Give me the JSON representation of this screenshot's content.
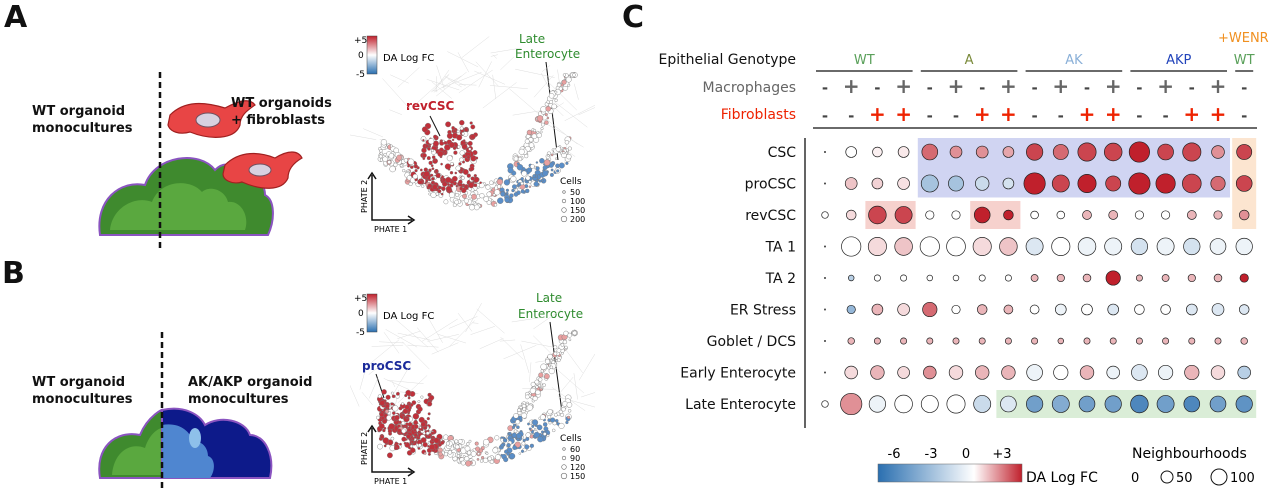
{
  "panels": {
    "a": {
      "letter": "A",
      "left_label_1": "WT organoid",
      "left_label_2": "monocultures",
      "right_label_1": "WT organoids",
      "right_label_2": "+ fibroblasts",
      "colorbar_top": "+5",
      "colorbar_mid": "0",
      "colorbar_bot": "-5",
      "colorbar_title": "DA Log FC",
      "annotation_late_1": "Late",
      "annotation_late_2": "Enterocyte",
      "annotation_highlight": "revCSC",
      "axis_y": "PHATE 2",
      "axis_x": "PHATE 1",
      "cells_title": "Cells",
      "cells_sizes": [
        "50",
        "100",
        "150",
        "200"
      ]
    },
    "b": {
      "letter": "B",
      "left_label_1": "WT organoid",
      "left_label_2": "monocultures",
      "right_label_1": "AK/AKP organoid",
      "right_label_2": "monocultures",
      "colorbar_top": "+5",
      "colorbar_mid": "0",
      "colorbar_bot": "-5",
      "colorbar_title": "DA Log FC",
      "annotation_late_1": "Late",
      "annotation_late_2": "Enterocyte",
      "annotation_highlight": "proCSC",
      "axis_y": "PHATE 2",
      "axis_x": "PHATE 1",
      "cells_title": "Cells",
      "cells_sizes": [
        "60",
        "90",
        "120",
        "150"
      ]
    },
    "c": {
      "letter": "C",
      "wenr_label": "+WENR",
      "row_header_genotype": "Epithelial Genotype",
      "row_header_macrophages": "Macrophages",
      "row_header_fibroblasts": "Fibroblasts",
      "genotype_groups": [
        {
          "label": "WT",
          "color": "#5aa05a"
        },
        {
          "label": "A",
          "color": "#7a8a3a"
        },
        {
          "label": "AK",
          "color": "#8ab0d8"
        },
        {
          "label": "AKP",
          "color": "#2244bb"
        },
        {
          "label": "WT",
          "color": "#5aa05a"
        }
      ],
      "macrophages": [
        "-",
        "+",
        "-",
        "+",
        "-",
        "+",
        "-",
        "+",
        "-",
        "+",
        "-",
        "+",
        "-",
        "+",
        "-",
        "+",
        "-"
      ],
      "fibroblasts": [
        "-",
        "-",
        "+",
        "+",
        "-",
        "-",
        "+",
        "+",
        "-",
        "-",
        "+",
        "+",
        "-",
        "-",
        "+",
        "+",
        "-"
      ],
      "cell_types": [
        "CSC",
        "proCSC",
        "revCSC",
        "TA 1",
        "TA 2",
        "ER Stress",
        "Goblet / DCS",
        "Early Enterocyte",
        "Late Enterocyte"
      ],
      "colorbar_ticks": [
        "-6",
        "-3",
        "0",
        "+3"
      ],
      "colorbar_title": "DA Log FC",
      "neigh_title": "Neighbourhoods",
      "neigh_sizes": [
        "0",
        "50",
        "100"
      ],
      "colors": {
        "positive": "#cc3333",
        "negative": "#2a6fb0",
        "fibroblast_sign": "#ee2200",
        "macrophage_sign": "#666666"
      }
    }
  },
  "chart_data": {
    "type": "bubble",
    "columns": [
      "WT",
      "WT +M",
      "WT +F",
      "WT +M+F",
      "A",
      "A +M",
      "A +F",
      "A +M+F",
      "AK",
      "AK +M",
      "AK +F",
      "AK +M+F",
      "AKP",
      "AKP +M",
      "AKP +F",
      "AKP +M+F",
      "WT +WENR"
    ],
    "rows": [
      "CSC",
      "proCSC",
      "revCSC",
      "TA 1",
      "TA 2",
      "ER Stress",
      "Goblet / DCS",
      "Early Enterocyte",
      "Late Enterocyte"
    ],
    "neighbourhoods": [
      [
        0,
        20,
        15,
        20,
        50,
        25,
        25,
        20,
        55,
        45,
        70,
        65,
        90,
        50,
        70,
        30,
        45
      ],
      [
        0,
        25,
        20,
        25,
        60,
        45,
        35,
        20,
        100,
        60,
        70,
        45,
        100,
        80,
        75,
        40,
        50
      ],
      [
        5,
        15,
        65,
        60,
        10,
        10,
        50,
        15,
        8,
        8,
        12,
        12,
        10,
        10,
        12,
        10,
        15
      ],
      [
        0,
        80,
        70,
        65,
        80,
        75,
        70,
        65,
        60,
        70,
        65,
        60,
        55,
        60,
        55,
        50,
        55
      ],
      [
        0,
        3,
        4,
        4,
        3,
        3,
        4,
        4,
        6,
        7,
        8,
        40,
        4,
        6,
        7,
        8,
        10
      ],
      [
        0,
        10,
        20,
        25,
        40,
        10,
        15,
        12,
        12,
        20,
        20,
        20,
        15,
        15,
        20,
        25,
        15
      ],
      [
        0,
        5,
        4,
        4,
        4,
        4,
        4,
        4,
        4,
        3,
        4,
        4,
        4,
        4,
        4,
        4,
        5
      ],
      [
        0,
        30,
        35,
        25,
        30,
        35,
        35,
        35,
        50,
        40,
        35,
        30,
        50,
        40,
        40,
        35,
        30
      ],
      [
        5,
        100,
        55,
        65,
        60,
        70,
        60,
        50,
        55,
        60,
        50,
        55,
        65,
        60,
        50,
        50,
        55
      ]
    ],
    "da_log_fc": [
      [
        0,
        0,
        0.2,
        0.3,
        2,
        1.5,
        1.5,
        1.2,
        2.5,
        2,
        2.5,
        2.5,
        3,
        2.5,
        2.5,
        1.5,
        2.5
      ],
      [
        0,
        0.8,
        0.6,
        0.4,
        -2.5,
        -2.5,
        -1.5,
        -1.2,
        3,
        2.5,
        3,
        2.5,
        3,
        3,
        2.5,
        2,
        2.5
      ],
      [
        0,
        0.5,
        2.5,
        2.5,
        0,
        0,
        3,
        3.5,
        0,
        0,
        1,
        1,
        0,
        0,
        1,
        1,
        1.5
      ],
      [
        0,
        0,
        0.5,
        0.8,
        0,
        0,
        0.5,
        0.8,
        -1,
        0,
        -0.5,
        -0.5,
        -1.2,
        -0.5,
        -1.2,
        -0.5,
        -0.5
      ],
      [
        0,
        -2,
        0,
        0,
        0,
        0,
        0,
        0,
        1,
        1,
        1,
        3.5,
        1,
        1,
        1,
        1,
        3
      ],
      [
        0,
        -3,
        1,
        0.5,
        2,
        0,
        1,
        1,
        0,
        -0.5,
        0,
        -1,
        0,
        0,
        -1,
        -1,
        -1
      ],
      [
        0,
        1,
        1,
        1,
        1,
        1,
        1,
        1,
        1,
        1,
        1,
        1,
        1,
        1,
        1,
        1,
        1
      ],
      [
        0,
        0.5,
        1,
        0.5,
        1.5,
        0.5,
        1,
        1,
        -0.5,
        0,
        1,
        -0.5,
        -1,
        -0.5,
        1,
        0.5,
        -2
      ],
      [
        0,
        1.5,
        -0.5,
        0,
        0,
        0,
        -1.5,
        -1,
        -4,
        -3.5,
        -4,
        -4,
        -5,
        -4,
        -5,
        -4,
        -4.5
      ]
    ],
    "color_range": [
      -6,
      3
    ],
    "highlights": [
      {
        "rows": [
          "CSC",
          "proCSC"
        ],
        "cols": [
          "A",
          "AKP +M+F"
        ],
        "color": "#c8cdf0"
      },
      {
        "rows": [
          "CSC",
          "proCSC",
          "revCSC"
        ],
        "cols": [
          "WT +WENR",
          "WT +WENR"
        ],
        "color": "#fbe0c8"
      },
      {
        "rows": [
          "revCSC"
        ],
        "cols": [
          "WT +F",
          "WT +M+F"
        ],
        "color": "#f5c9c4"
      },
      {
        "rows": [
          "revCSC"
        ],
        "cols": [
          "A +F",
          "A +M+F"
        ],
        "color": "#f5c9c4"
      },
      {
        "rows": [
          "Late Enterocyte"
        ],
        "cols": [
          "A +M+F",
          "WT +WENR"
        ],
        "color": "#d4ead0"
      }
    ]
  }
}
